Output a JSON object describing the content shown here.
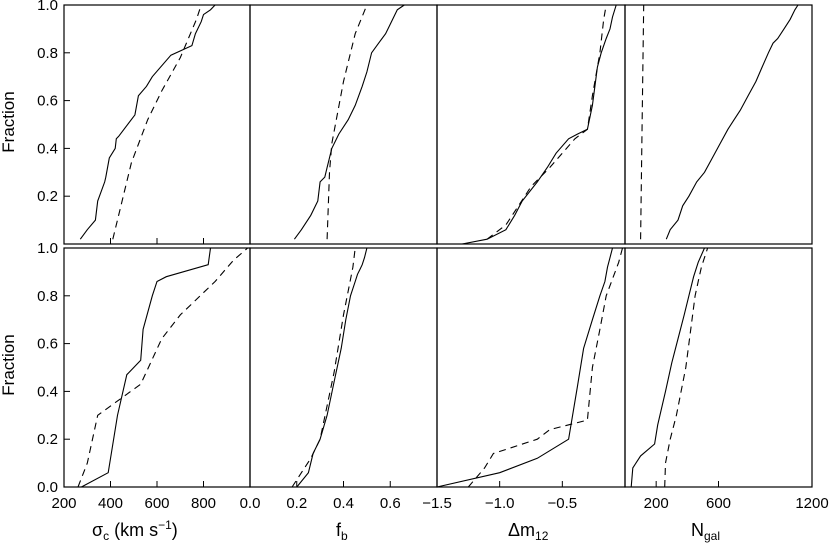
{
  "chart_data": [
    {
      "type": "line",
      "panel": "top-1",
      "xlim": [
        200,
        1000
      ],
      "ylim": [
        0,
        1
      ],
      "x_ticks": [
        200,
        400,
        600,
        800
      ],
      "y_ticks": [
        0.2,
        0.4,
        0.6,
        0.8,
        1.0
      ],
      "series": [
        {
          "style": "solid",
          "x": [
            270,
            300,
            335,
            345,
            375,
            380,
            395,
            420,
            425,
            435,
            505,
            520,
            555,
            580,
            660,
            750,
            765,
            790,
            800,
            830,
            850,
            870,
            900,
            990
          ],
          "y": [
            0.02,
            0.06,
            0.1,
            0.18,
            0.26,
            0.28,
            0.36,
            0.4,
            0.44,
            0.45,
            0.54,
            0.62,
            0.66,
            0.7,
            0.79,
            0.83,
            0.88,
            0.93,
            0.96,
            0.98,
            1.0,
            1.0,
            1.0,
            1.0
          ]
        },
        {
          "style": "dashed",
          "x": [
            410,
            440,
            490,
            560,
            620,
            700,
            770,
            790
          ],
          "y": [
            0.02,
            0.14,
            0.34,
            0.52,
            0.64,
            0.78,
            0.94,
            1.0
          ]
        }
      ]
    },
    {
      "type": "line",
      "panel": "top-2",
      "xlim": [
        0.0,
        0.8
      ],
      "ylim": [
        0,
        1
      ],
      "series": [
        {
          "style": "solid",
          "x": [
            0.19,
            0.22,
            0.26,
            0.29,
            0.3,
            0.32,
            0.33,
            0.35,
            0.38,
            0.42,
            0.45,
            0.48,
            0.5,
            0.52,
            0.55,
            0.58,
            0.6,
            0.63,
            0.66
          ],
          "y": [
            0.02,
            0.06,
            0.12,
            0.18,
            0.26,
            0.28,
            0.32,
            0.4,
            0.46,
            0.52,
            0.58,
            0.66,
            0.72,
            0.8,
            0.84,
            0.88,
            0.92,
            0.98,
            1.0
          ]
        },
        {
          "style": "dashed",
          "x": [
            0.33,
            0.34,
            0.35,
            0.4,
            0.45,
            0.5
          ],
          "y": [
            0.02,
            0.3,
            0.42,
            0.68,
            0.88,
            1.0
          ]
        }
      ]
    },
    {
      "type": "line",
      "panel": "top-3",
      "xlim": [
        -1.5,
        0.0
      ],
      "ylim": [
        0,
        1
      ],
      "series": [
        {
          "style": "solid",
          "x": [
            -1.3,
            -1.1,
            -0.95,
            -0.88,
            -0.82,
            -0.7,
            -0.62,
            -0.55,
            -0.45,
            -0.38,
            -0.3,
            -0.26,
            -0.24,
            -0.22,
            -0.19,
            -0.15,
            -0.12,
            -0.1,
            -0.07
          ],
          "y": [
            0.0,
            0.02,
            0.06,
            0.12,
            0.18,
            0.26,
            0.32,
            0.38,
            0.44,
            0.46,
            0.48,
            0.58,
            0.66,
            0.74,
            0.8,
            0.86,
            0.9,
            0.95,
            1.0
          ]
        },
        {
          "style": "dashed",
          "x": [
            -1.1,
            -0.95,
            -0.85,
            -0.75,
            -0.6,
            -0.5,
            -0.4,
            -0.3,
            -0.26,
            -0.2,
            -0.17,
            -0.15
          ],
          "y": [
            0.02,
            0.08,
            0.16,
            0.24,
            0.32,
            0.38,
            0.44,
            0.48,
            0.62,
            0.8,
            0.94,
            1.0
          ]
        }
      ]
    },
    {
      "type": "line",
      "panel": "top-4",
      "xlim": [
        0,
        1200
      ],
      "ylim": [
        0,
        1
      ],
      "series": [
        {
          "style": "solid",
          "x": [
            265,
            290,
            340,
            370,
            410,
            460,
            510,
            560,
            610,
            660,
            700,
            740,
            790,
            840,
            880,
            920,
            950,
            980,
            1020,
            1060,
            1090,
            1110
          ],
          "y": [
            0.02,
            0.06,
            0.1,
            0.16,
            0.2,
            0.26,
            0.3,
            0.36,
            0.42,
            0.48,
            0.52,
            0.56,
            0.62,
            0.68,
            0.74,
            0.8,
            0.84,
            0.86,
            0.9,
            0.94,
            0.98,
            1.0
          ]
        },
        {
          "style": "dashed",
          "x": [
            100,
            110,
            120
          ],
          "y": [
            0.02,
            0.5,
            1.0
          ]
        }
      ]
    },
    {
      "type": "line",
      "panel": "bottom-1",
      "xlim": [
        200,
        1000
      ],
      "ylim": [
        0,
        1
      ],
      "x_ticks": [
        200,
        400,
        600,
        800
      ],
      "y_ticks": [
        0.0,
        0.2,
        0.4,
        0.6,
        0.8,
        1.0
      ],
      "xlabel": "σ",
      "xlabel_sub": "c",
      "xlabel_tail": " (km s",
      "xlabel_sup": "−1",
      "xlabel_end": ")",
      "series": [
        {
          "style": "solid",
          "x": [
            275,
            390,
            430,
            470,
            530,
            540,
            580,
            600,
            640,
            820,
            830
          ],
          "y": [
            0.0,
            0.06,
            0.3,
            0.47,
            0.53,
            0.66,
            0.8,
            0.86,
            0.88,
            0.93,
            1.0
          ]
        },
        {
          "style": "dashed",
          "x": [
            260,
            300,
            345,
            530,
            620,
            700,
            850,
            930,
            990
          ],
          "y": [
            0.0,
            0.1,
            0.3,
            0.43,
            0.62,
            0.72,
            0.86,
            0.95,
            1.0
          ]
        }
      ]
    },
    {
      "type": "line",
      "panel": "bottom-2",
      "xlim": [
        0.0,
        0.8
      ],
      "ylim": [
        0,
        1
      ],
      "x_ticks": [
        0.0,
        0.2,
        0.4,
        0.6
      ],
      "xlabel": "f",
      "xlabel_sub": "b",
      "series": [
        {
          "style": "solid",
          "x": [
            0.2,
            0.25,
            0.27,
            0.3,
            0.33,
            0.36,
            0.39,
            0.41,
            0.43,
            0.45,
            0.46,
            0.47,
            0.48,
            0.49,
            0.5
          ],
          "y": [
            0.0,
            0.06,
            0.14,
            0.2,
            0.3,
            0.44,
            0.58,
            0.7,
            0.8,
            0.86,
            0.89,
            0.91,
            0.93,
            0.96,
            1.0
          ]
        },
        {
          "style": "dashed",
          "x": [
            0.18,
            0.22,
            0.26,
            0.3,
            0.33,
            0.36,
            0.38,
            0.4,
            0.42,
            0.44,
            0.45
          ],
          "y": [
            0.0,
            0.06,
            0.12,
            0.2,
            0.34,
            0.48,
            0.6,
            0.72,
            0.82,
            0.92,
            1.0
          ]
        }
      ]
    },
    {
      "type": "line",
      "panel": "bottom-3",
      "xlim": [
        -1.5,
        0.0
      ],
      "ylim": [
        0,
        1
      ],
      "x_ticks": [
        -1.5,
        -1.0,
        -0.5
      ],
      "xlabel": "Δm",
      "xlabel_sub": "12",
      "series": [
        {
          "style": "solid",
          "x": [
            -1.5,
            -1.0,
            -0.7,
            -0.45,
            -0.38,
            -0.33,
            -0.26,
            -0.2,
            -0.16,
            -0.14,
            -0.12,
            -0.1
          ],
          "y": [
            0.0,
            0.06,
            0.12,
            0.2,
            0.42,
            0.58,
            0.7,
            0.8,
            0.86,
            0.92,
            0.96,
            1.0
          ]
        },
        {
          "style": "dashed",
          "x": [
            -1.25,
            -1.12,
            -1.05,
            -0.7,
            -0.6,
            -0.3,
            -0.26,
            -0.2,
            -0.15,
            -0.05,
            -0.02
          ],
          "y": [
            0.0,
            0.08,
            0.14,
            0.2,
            0.24,
            0.28,
            0.5,
            0.66,
            0.8,
            0.94,
            1.0
          ]
        }
      ]
    },
    {
      "type": "line",
      "panel": "bottom-4",
      "xlim": [
        0,
        1200
      ],
      "ylim": [
        0,
        1
      ],
      "x_ticks": [
        200,
        600,
        1200
      ],
      "xlabel": "N",
      "xlabel_sub": "gal",
      "series": [
        {
          "style": "solid",
          "x": [
            40,
            50,
            100,
            190,
            210,
            260,
            300,
            340,
            380,
            410,
            440,
            470,
            510
          ],
          "y": [
            0.0,
            0.08,
            0.13,
            0.18,
            0.26,
            0.4,
            0.52,
            0.62,
            0.72,
            0.8,
            0.88,
            0.94,
            1.0
          ]
        },
        {
          "style": "dashed",
          "x": [
            255,
            260,
            290,
            330,
            360,
            390,
            410,
            430,
            450,
            470,
            490,
            510,
            530
          ],
          "y": [
            0.0,
            0.1,
            0.2,
            0.3,
            0.4,
            0.5,
            0.6,
            0.7,
            0.8,
            0.86,
            0.92,
            0.96,
            1.0
          ]
        }
      ]
    }
  ],
  "ylabels": [
    "Fraction",
    "Fraction"
  ]
}
